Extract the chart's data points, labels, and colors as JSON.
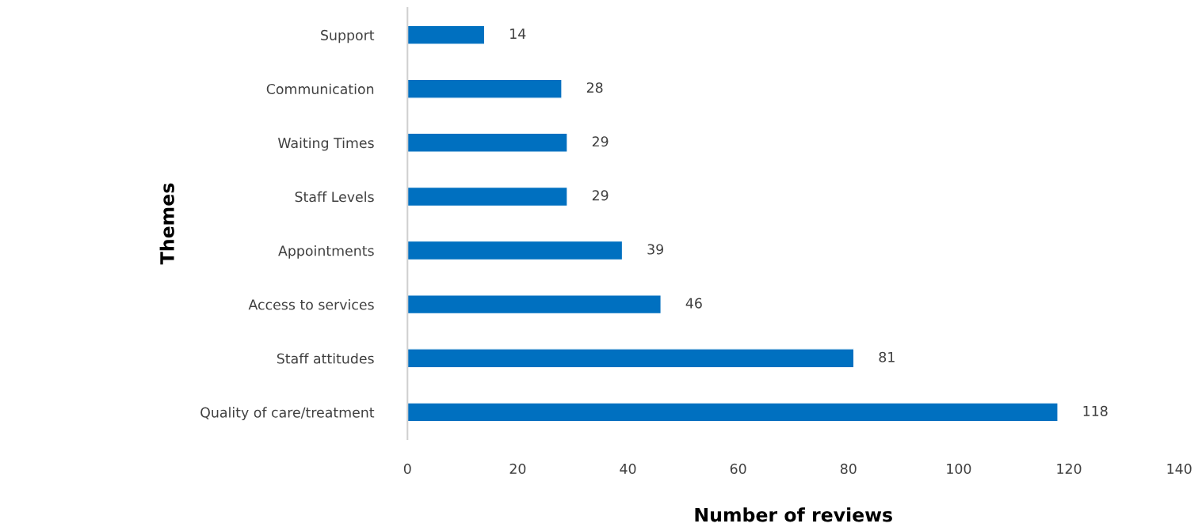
{
  "chart_data": {
    "type": "bar",
    "orientation": "horizontal",
    "xlabel": "Number of reviews",
    "ylabel": "Themes",
    "categories": [
      "Support",
      "Communication",
      "Waiting Times",
      "Staff Levels",
      "Appointments",
      "Access to services",
      "Staff attitudes",
      "Quality of care/treatment"
    ],
    "values": [
      14,
      28,
      29,
      29,
      39,
      46,
      81,
      118
    ],
    "color": "#0070c0",
    "xlim": [
      0,
      140
    ],
    "xticks": [
      0,
      20,
      40,
      60,
      80,
      100,
      120,
      140
    ],
    "data_labels": true,
    "grid": false,
    "legend": false
  }
}
